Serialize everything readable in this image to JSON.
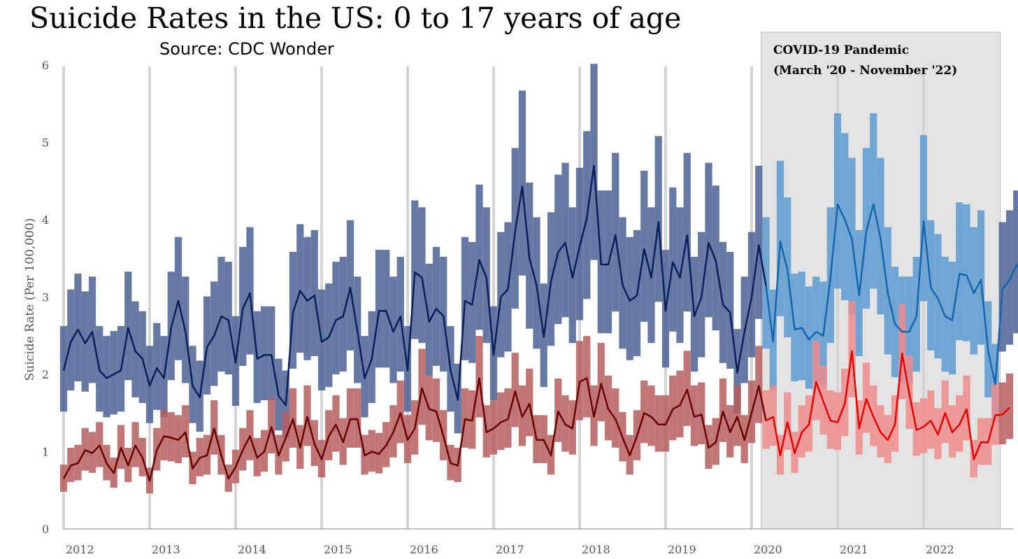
{
  "chart_data": {
    "type": "line",
    "title": "Suicide Rates in the US: 0 to 17 years of age",
    "subtitle": "Source: CDC Wonder",
    "ylabel": "Suicide Rate (Per 100,000)",
    "xlabel": "",
    "ylim": [
      0,
      6
    ],
    "yticks": [
      "0",
      "1",
      "2",
      "3",
      "4",
      "5",
      "6"
    ],
    "year_labels": [
      "2012",
      "2013",
      "2014",
      "2015",
      "2016",
      "2017",
      "2018",
      "2019",
      "2020",
      "2021",
      "2022"
    ],
    "x_start": "2012-01",
    "x_end": "2022-12",
    "pandemic": {
      "label_line1": "COVID-19 Pandemic",
      "label_line2": "(March '20 - November '22)",
      "start": "2020-03",
      "end": "2022-11"
    },
    "series": [
      {
        "color": "#0a1f5c",
        "band_color": "#4a6294",
        "pandemic_color": "#1565b0",
        "pandemic_band_color": "#5b9bd1",
        "values": [
          2.05,
          2.42,
          2.58,
          2.4,
          2.55,
          2.05,
          1.95,
          2.0,
          2.05,
          2.6,
          2.3,
          2.2,
          1.85,
          2.08,
          1.95,
          2.6,
          2.95,
          2.55,
          1.85,
          1.7,
          2.35,
          2.5,
          2.75,
          2.7,
          2.15,
          2.85,
          3.05,
          2.2,
          2.25,
          2.25,
          1.72,
          1.6,
          2.8,
          3.08,
          2.95,
          3.02,
          2.42,
          2.48,
          2.7,
          2.75,
          3.12,
          2.55,
          1.95,
          2.2,
          2.82,
          2.82,
          2.55,
          2.75,
          2.05,
          3.32,
          3.25,
          2.68,
          2.85,
          2.75,
          2.05,
          1.67,
          2.95,
          2.9,
          3.48,
          3.25,
          2.25,
          3.0,
          3.1,
          3.85,
          4.43,
          3.5,
          3.15,
          2.48,
          3.2,
          3.58,
          3.7,
          3.25,
          3.65,
          4.02,
          4.7,
          3.42,
          3.42,
          3.8,
          3.15,
          2.95,
          3.02,
          3.62,
          3.25,
          3.97,
          2.82,
          3.45,
          3.25,
          3.8,
          2.75,
          3.0,
          3.7,
          3.47,
          2.9,
          2.8,
          2.02,
          2.55,
          3.0,
          3.67,
          3.15,
          2.42,
          3.72,
          3.35,
          2.58,
          2.6,
          2.45,
          2.55,
          2.5,
          3.25,
          4.2,
          4.0,
          3.75,
          3.02,
          3.85,
          4.2,
          3.75,
          3.05,
          2.65,
          2.55,
          2.55,
          2.75,
          3.98,
          3.12,
          2.98,
          2.75,
          2.7,
          3.3,
          3.28,
          3.05,
          3.22,
          2.3,
          1.87,
          3.1,
          3.22,
          3.42,
          3.22
        ]
      },
      {
        "color": "#6b0000",
        "band_color": "#b65e5e",
        "pandemic_color": "#e60000",
        "pandemic_band_color": "#ee8c8c",
        "values": [
          0.65,
          0.82,
          0.85,
          1.02,
          0.98,
          1.08,
          0.85,
          0.72,
          1.05,
          0.82,
          1.08,
          0.92,
          0.62,
          1.02,
          1.2,
          1.18,
          1.15,
          1.25,
          0.78,
          0.92,
          0.95,
          1.3,
          0.95,
          0.65,
          0.8,
          1.02,
          1.2,
          0.92,
          1.0,
          1.32,
          0.95,
          1.18,
          1.42,
          1.05,
          1.45,
          1.1,
          0.9,
          1.2,
          1.35,
          1.12,
          1.42,
          1.42,
          0.95,
          1.0,
          0.97,
          1.08,
          1.25,
          1.5,
          1.15,
          1.3,
          1.82,
          1.55,
          1.52,
          1.2,
          0.85,
          0.82,
          1.42,
          1.4,
          1.95,
          1.25,
          1.3,
          1.38,
          1.42,
          1.78,
          1.45,
          1.62,
          1.15,
          1.15,
          0.95,
          1.52,
          1.35,
          1.3,
          1.9,
          1.95,
          1.45,
          1.88,
          1.55,
          1.42,
          1.18,
          0.95,
          1.2,
          1.5,
          1.45,
          1.35,
          1.35,
          1.55,
          1.6,
          1.8,
          1.45,
          1.48,
          1.05,
          1.12,
          1.52,
          1.25,
          1.45,
          1.15,
          1.5,
          1.85,
          1.4,
          1.45,
          0.95,
          1.38,
          0.98,
          1.25,
          1.35,
          1.9,
          1.65,
          1.4,
          1.38,
          1.62,
          2.3,
          1.3,
          1.68,
          1.45,
          1.25,
          1.15,
          1.35,
          2.27,
          1.75,
          1.28,
          1.32,
          1.4,
          1.22,
          1.5,
          1.25,
          1.35,
          1.55,
          0.9,
          1.12,
          1.12,
          1.47,
          1.48,
          1.57
        ]
      }
    ]
  }
}
